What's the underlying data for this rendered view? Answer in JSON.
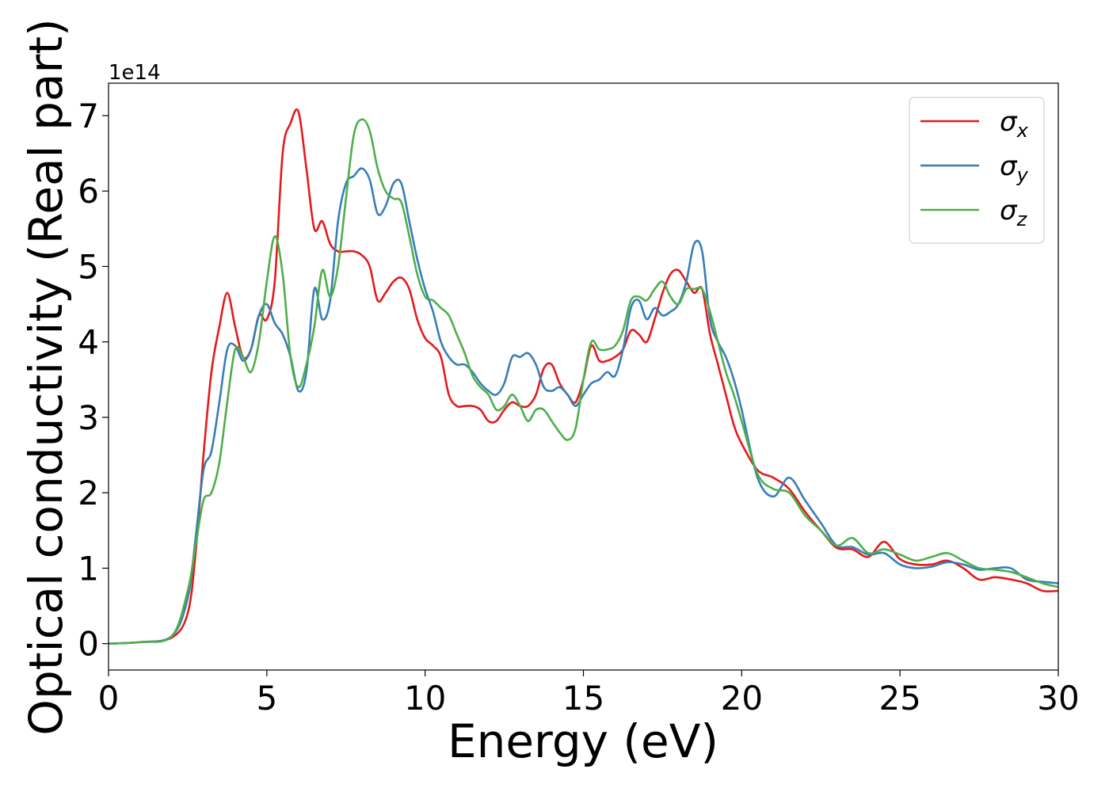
{
  "chart_data": {
    "type": "line",
    "xlabel": "Energy (eV)",
    "ylabel": "Optical conductivity (Real part)",
    "y_offset_label": "1e14",
    "xlim": [
      0,
      30
    ],
    "ylim": [
      -0.35,
      7.43
    ],
    "xticks": [
      0,
      5,
      10,
      15,
      20,
      25,
      30
    ],
    "yticks": [
      0,
      1,
      2,
      3,
      4,
      5,
      6,
      7
    ],
    "grid": false,
    "legend": "upper right",
    "x": [
      0,
      1,
      2,
      2.5,
      2.75,
      3,
      3.25,
      3.5,
      3.75,
      4,
      4.25,
      4.5,
      4.75,
      5,
      5.25,
      5.5,
      5.75,
      6,
      6.25,
      6.5,
      6.75,
      7,
      7.25,
      7.5,
      7.75,
      8,
      8.25,
      8.5,
      8.75,
      9,
      9.25,
      9.5,
      9.75,
      10,
      10.25,
      10.5,
      10.75,
      11,
      11.25,
      11.5,
      11.75,
      12,
      12.25,
      12.5,
      12.75,
      13,
      13.25,
      13.5,
      13.75,
      14,
      14.25,
      14.5,
      14.75,
      15,
      15.25,
      15.5,
      15.75,
      16,
      16.25,
      16.5,
      16.75,
      17,
      17.25,
      17.5,
      17.75,
      18,
      18.25,
      18.5,
      18.75,
      19,
      19.25,
      19.5,
      19.75,
      20,
      20.5,
      21,
      21.5,
      22,
      22.5,
      23,
      23.5,
      24,
      24.5,
      25,
      25.5,
      26,
      26.5,
      27,
      27.5,
      28,
      28.5,
      29,
      29.5,
      30
    ],
    "series": [
      {
        "name": "σx",
        "color": "#e41a1c",
        "values": [
          0,
          0.02,
          0.08,
          0.4,
          1.2,
          2.5,
          3.6,
          4.2,
          4.65,
          4.2,
          3.8,
          3.9,
          4.35,
          4.3,
          4.8,
          6.5,
          6.9,
          7.05,
          6.3,
          5.5,
          5.6,
          5.3,
          5.2,
          5.2,
          5.2,
          5.15,
          5.0,
          4.55,
          4.65,
          4.8,
          4.85,
          4.7,
          4.3,
          4.05,
          3.95,
          3.8,
          3.3,
          3.15,
          3.15,
          3.15,
          3.1,
          2.95,
          2.95,
          3.1,
          3.2,
          3.15,
          3.15,
          3.3,
          3.65,
          3.7,
          3.45,
          3.3,
          3.2,
          3.5,
          3.95,
          3.75,
          3.75,
          3.8,
          3.9,
          4.15,
          4.1,
          4.0,
          4.3,
          4.65,
          4.9,
          4.95,
          4.8,
          4.65,
          4.7,
          4.1,
          3.7,
          3.3,
          2.9,
          2.65,
          2.3,
          2.2,
          2.05,
          1.75,
          1.5,
          1.27,
          1.25,
          1.15,
          1.35,
          1.12,
          1.05,
          1.05,
          1.1,
          1.0,
          0.85,
          0.88,
          0.85,
          0.8,
          0.7,
          0.7
        ]
      },
      {
        "name": "σy",
        "color": "#377eb8",
        "values": [
          0,
          0.02,
          0.1,
          0.6,
          1.4,
          2.3,
          2.55,
          3.2,
          3.9,
          3.95,
          3.75,
          3.9,
          4.35,
          4.5,
          4.25,
          4.1,
          3.8,
          3.35,
          3.6,
          4.7,
          4.3,
          4.55,
          5.6,
          6.1,
          6.2,
          6.3,
          6.15,
          5.7,
          5.8,
          6.1,
          6.1,
          5.6,
          5.1,
          4.7,
          4.4,
          4.0,
          3.8,
          3.7,
          3.7,
          3.6,
          3.45,
          3.35,
          3.3,
          3.45,
          3.8,
          3.8,
          3.85,
          3.7,
          3.4,
          3.35,
          3.4,
          3.3,
          3.15,
          3.3,
          3.45,
          3.5,
          3.6,
          3.55,
          3.9,
          4.45,
          4.55,
          4.3,
          4.45,
          4.35,
          4.4,
          4.5,
          4.8,
          5.3,
          5.2,
          4.3,
          4.0,
          3.8,
          3.5,
          3.1,
          2.2,
          1.95,
          2.2,
          1.9,
          1.6,
          1.3,
          1.28,
          1.18,
          1.2,
          1.05,
          1.0,
          1.02,
          1.08,
          1.05,
          0.98,
          1.0,
          1.0,
          0.85,
          0.82,
          0.8
        ]
      },
      {
        "name": "σz",
        "color": "#4daf4a",
        "values": [
          0,
          0.02,
          0.1,
          0.7,
          1.3,
          1.9,
          2.0,
          2.4,
          3.2,
          3.9,
          3.8,
          3.6,
          4.0,
          4.8,
          5.4,
          4.9,
          3.8,
          3.4,
          3.7,
          4.2,
          4.95,
          4.6,
          5.0,
          5.9,
          6.75,
          6.95,
          6.8,
          6.3,
          6.0,
          5.9,
          5.85,
          5.4,
          4.9,
          4.6,
          4.55,
          4.45,
          4.35,
          4.1,
          3.85,
          3.55,
          3.4,
          3.3,
          3.1,
          3.15,
          3.3,
          3.15,
          2.95,
          3.1,
          3.1,
          2.95,
          2.8,
          2.7,
          2.85,
          3.5,
          4.0,
          3.9,
          3.9,
          3.95,
          4.15,
          4.55,
          4.6,
          4.55,
          4.7,
          4.8,
          4.6,
          4.5,
          4.7,
          4.7,
          4.7,
          4.4,
          4.0,
          3.6,
          3.3,
          2.95,
          2.25,
          2.05,
          2.0,
          1.7,
          1.5,
          1.3,
          1.4,
          1.2,
          1.25,
          1.18,
          1.1,
          1.15,
          1.2,
          1.1,
          1.0,
          0.98,
          0.95,
          0.88,
          0.8,
          0.75
        ]
      }
    ]
  }
}
